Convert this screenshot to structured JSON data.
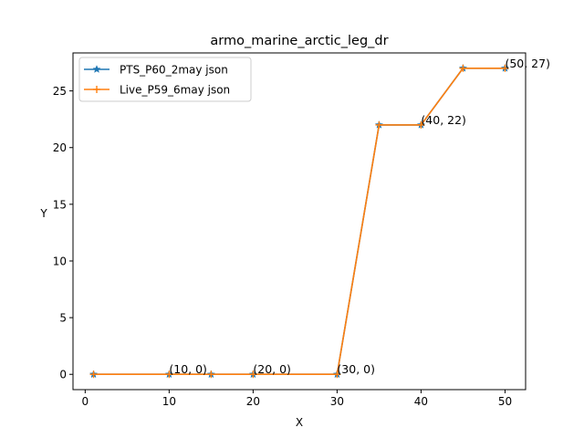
{
  "chart_data": {
    "type": "line",
    "title": "armo_marine_arctic_leg_dr",
    "xlabel": "X",
    "ylabel": "Y",
    "xlim": [
      -1.45,
      52.45
    ],
    "ylim": [
      -1.35,
      28.35
    ],
    "xticks": [
      0,
      10,
      20,
      30,
      40,
      50
    ],
    "yticks": [
      0,
      5,
      10,
      15,
      20,
      25
    ],
    "grid": false,
    "legend_position": "upper left",
    "series": [
      {
        "name": "PTS_P60_2may json",
        "color": "#1f77b4",
        "marker": "star",
        "x": [
          1,
          10,
          15,
          20,
          30,
          35,
          40,
          45,
          50
        ],
        "y": [
          0,
          0,
          0,
          0,
          0,
          22,
          22,
          27,
          27
        ]
      },
      {
        "name": "Live_P59_6may json",
        "color": "#ff7f0e",
        "marker": "plus",
        "x": [
          1,
          10,
          15,
          20,
          30,
          35,
          40,
          45,
          50
        ],
        "y": [
          0,
          0,
          0,
          0,
          0,
          22,
          22,
          27,
          27
        ]
      }
    ],
    "annotations": [
      {
        "x": 10,
        "y": 0,
        "text": "(10, 0)"
      },
      {
        "x": 20,
        "y": 0,
        "text": "(20, 0)"
      },
      {
        "x": 30,
        "y": 0,
        "text": "(30, 0)"
      },
      {
        "x": 40,
        "y": 22,
        "text": "(40, 22)"
      },
      {
        "x": 50,
        "y": 27,
        "text": "(50, 27)"
      }
    ]
  }
}
